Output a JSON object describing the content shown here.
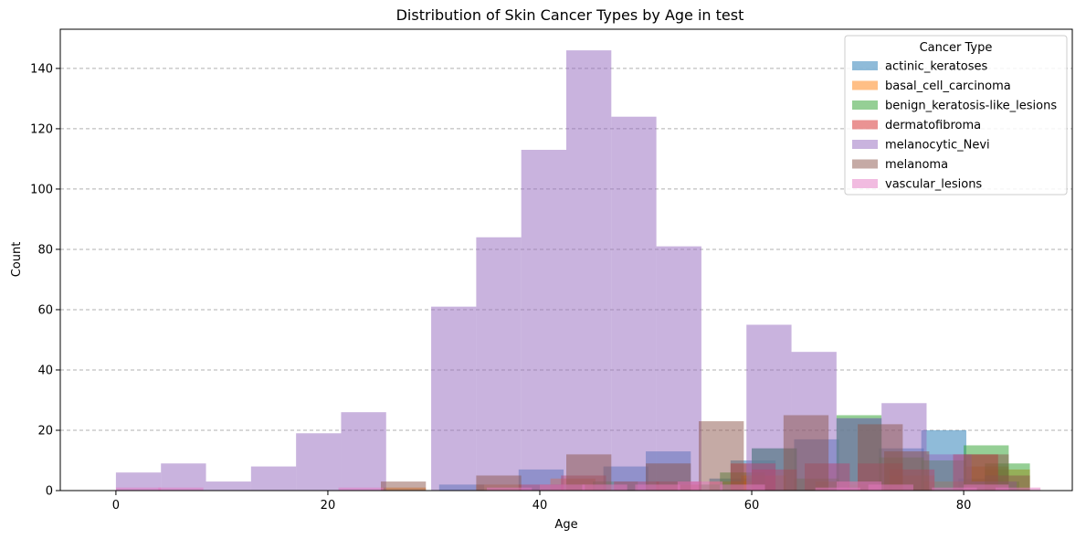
{
  "chart_data": {
    "type": "bar",
    "title": "Distribution of Skin Cancer Types by Age in test",
    "xlabel": "Age",
    "ylabel": "Count",
    "xlim": [
      -5.25,
      90.25
    ],
    "ylim": [
      0,
      153
    ],
    "xticks": [
      0,
      20,
      40,
      60,
      80
    ],
    "yticks": [
      0,
      20,
      40,
      60,
      80,
      100,
      120,
      140
    ],
    "grid": "y-dashed",
    "legend": {
      "title": "Cancer Type",
      "placement": "top-right"
    },
    "bin_width": 4.25,
    "series": [
      {
        "name": "actinic_keratoses",
        "color": "#1f77b4",
        "bins": [
          [
            30.5,
            2
          ],
          [
            38,
            7
          ],
          [
            46,
            8
          ],
          [
            50,
            13
          ],
          [
            56,
            4
          ],
          [
            58,
            10
          ],
          [
            60,
            14
          ],
          [
            64,
            17
          ],
          [
            68,
            24
          ],
          [
            72,
            14
          ],
          [
            76,
            20
          ],
          [
            79.5,
            4
          ],
          [
            81,
            3
          ]
        ]
      },
      {
        "name": "basal_cell_carcinoma",
        "color": "#ff7f0e",
        "bins": [
          [
            25,
            1
          ],
          [
            34,
            2
          ],
          [
            41,
            4
          ],
          [
            51,
            2
          ],
          [
            56,
            3
          ],
          [
            59,
            5
          ],
          [
            66,
            3
          ],
          [
            69,
            2
          ],
          [
            73,
            5
          ],
          [
            76,
            3
          ],
          [
            80,
            8
          ],
          [
            82,
            7
          ]
        ]
      },
      {
        "name": "benign_keratosis-like_lesions",
        "color": "#2ca02c",
        "bins": [
          [
            40,
            2
          ],
          [
            45,
            3
          ],
          [
            55,
            2
          ],
          [
            57,
            6
          ],
          [
            60,
            14
          ],
          [
            64,
            4
          ],
          [
            68,
            25
          ],
          [
            72,
            11
          ],
          [
            76,
            10
          ],
          [
            80,
            15
          ],
          [
            82,
            9
          ]
        ]
      },
      {
        "name": "dermatofibroma",
        "color": "#d62728",
        "bins": [
          [
            38,
            2
          ],
          [
            42,
            5
          ],
          [
            47,
            3
          ],
          [
            51,
            3
          ],
          [
            58,
            9
          ],
          [
            60,
            7
          ],
          [
            65,
            9
          ],
          [
            70,
            9
          ],
          [
            73,
            7
          ],
          [
            79,
            12
          ]
        ]
      },
      {
        "name": "melanocytic_Nevi",
        "color": "#9467bd",
        "bins": [
          [
            0,
            6
          ],
          [
            4.25,
            9
          ],
          [
            8.5,
            3
          ],
          [
            12.75,
            8
          ],
          [
            17,
            19
          ],
          [
            21.25,
            26
          ],
          [
            25.5,
            0
          ],
          [
            29.75,
            61
          ],
          [
            34,
            84
          ],
          [
            38.25,
            113
          ],
          [
            42.5,
            146
          ],
          [
            46.75,
            124
          ],
          [
            51,
            81
          ],
          [
            55.25,
            0
          ],
          [
            59.5,
            55
          ],
          [
            63.75,
            46
          ],
          [
            68,
            24
          ],
          [
            72.25,
            29
          ],
          [
            76.5,
            12
          ],
          [
            80.75,
            3
          ]
        ]
      },
      {
        "name": "melanoma",
        "color": "#8c564b",
        "bins": [
          [
            25,
            3
          ],
          [
            34,
            5
          ],
          [
            42.5,
            12
          ],
          [
            50,
            9
          ],
          [
            55,
            23
          ],
          [
            63,
            25
          ],
          [
            70,
            22
          ],
          [
            72.5,
            13
          ],
          [
            80,
            12
          ],
          [
            82,
            5
          ]
        ]
      },
      {
        "name": "vascular_lesions",
        "color": "#e377c2",
        "bins": [
          [
            0,
            1
          ],
          [
            4,
            1
          ],
          [
            21,
            1
          ],
          [
            35,
            1
          ],
          [
            40,
            2
          ],
          [
            44,
            2
          ],
          [
            49,
            2
          ],
          [
            53,
            3
          ],
          [
            57,
            2
          ],
          [
            66,
            1
          ],
          [
            68,
            3
          ],
          [
            71,
            2
          ],
          [
            77,
            1
          ],
          [
            80,
            2
          ],
          [
            83,
            1
          ]
        ]
      }
    ]
  }
}
